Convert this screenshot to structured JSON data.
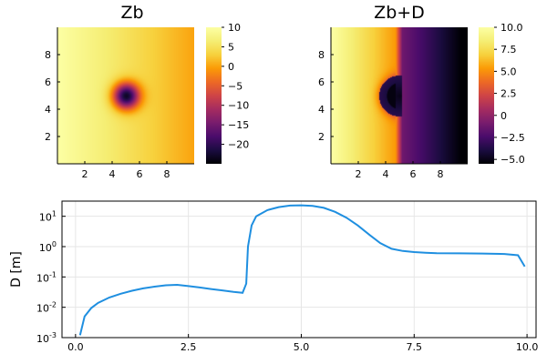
{
  "chart_data": [
    {
      "type": "heatmap",
      "title": "Zb",
      "xlim": [
        0,
        10
      ],
      "ylim": [
        0,
        10
      ],
      "xticks": [
        "2",
        "4",
        "6",
        "8"
      ],
      "yticks": [
        "2",
        "4",
        "6",
        "8"
      ],
      "colormap": "inferno",
      "clim": [
        -25,
        10
      ],
      "colorbar_ticks": [
        "10",
        "5",
        "0",
        "−5",
        "−10",
        "−15",
        "−20"
      ],
      "colorbar_values": [
        10,
        5,
        0,
        -5,
        -10,
        -15,
        -20
      ],
      "description_of_field": {
        "gradient_x": "decreasing from left (~10) to right (~0)",
        "pit_center": [
          5,
          5
        ],
        "pit_min": -25
      }
    },
    {
      "type": "heatmap",
      "title": "Zb+D",
      "xlim": [
        0,
        10
      ],
      "ylim": [
        0,
        10
      ],
      "xticks": [
        "2",
        "4",
        "6",
        "8"
      ],
      "yticks": [
        "2",
        "4",
        "6",
        "8"
      ],
      "colormap": "inferno",
      "clim": [
        -5.5,
        10
      ],
      "colorbar_ticks": [
        "10.0",
        "7.5",
        "5.0",
        "2.5",
        "0",
        "−2.5",
        "−5.0"
      ],
      "colorbar_values": [
        10,
        7.5,
        5,
        2.5,
        0,
        -2.5,
        -5
      ]
    },
    {
      "type": "line",
      "title": "",
      "xlabel": "",
      "ylabel": "D [m]",
      "yscale": "log",
      "xlim": [
        -0.3,
        10.2
      ],
      "ylim_log10": [
        -3,
        1.5
      ],
      "xticks": [
        0,
        2.5,
        5,
        7.5,
        10
      ],
      "xtick_labels": [
        "0.0",
        "2.5",
        "5.0",
        "7.5",
        "10.0"
      ],
      "yticks_exp": [
        -3,
        -2,
        -1,
        0,
        1
      ],
      "ytick_base": "10",
      "grid": true,
      "color": "#1f8fe0",
      "x": [
        0.1,
        0.2,
        0.35,
        0.5,
        0.75,
        1.0,
        1.25,
        1.5,
        1.75,
        2.0,
        2.25,
        2.5,
        2.75,
        3.0,
        3.25,
        3.5,
        3.7,
        3.78,
        3.82,
        3.9,
        4.0,
        4.25,
        4.5,
        4.75,
        5.0,
        5.25,
        5.5,
        5.75,
        6.0,
        6.25,
        6.5,
        6.75,
        7.0,
        7.25,
        7.5,
        7.75,
        8.0,
        8.5,
        9.0,
        9.5,
        9.8,
        9.95
      ],
      "y": [
        0.0012,
        0.005,
        0.0095,
        0.014,
        0.021,
        0.028,
        0.035,
        0.042,
        0.048,
        0.053,
        0.055,
        0.05,
        0.045,
        0.04,
        0.036,
        0.032,
        0.03,
        0.06,
        1.0,
        5.0,
        10.0,
        16.0,
        20.0,
        22.5,
        23.0,
        22.0,
        19.0,
        14.0,
        9.0,
        5.0,
        2.5,
        1.3,
        0.85,
        0.72,
        0.66,
        0.63,
        0.61,
        0.6,
        0.59,
        0.57,
        0.52,
        0.22
      ]
    }
  ]
}
